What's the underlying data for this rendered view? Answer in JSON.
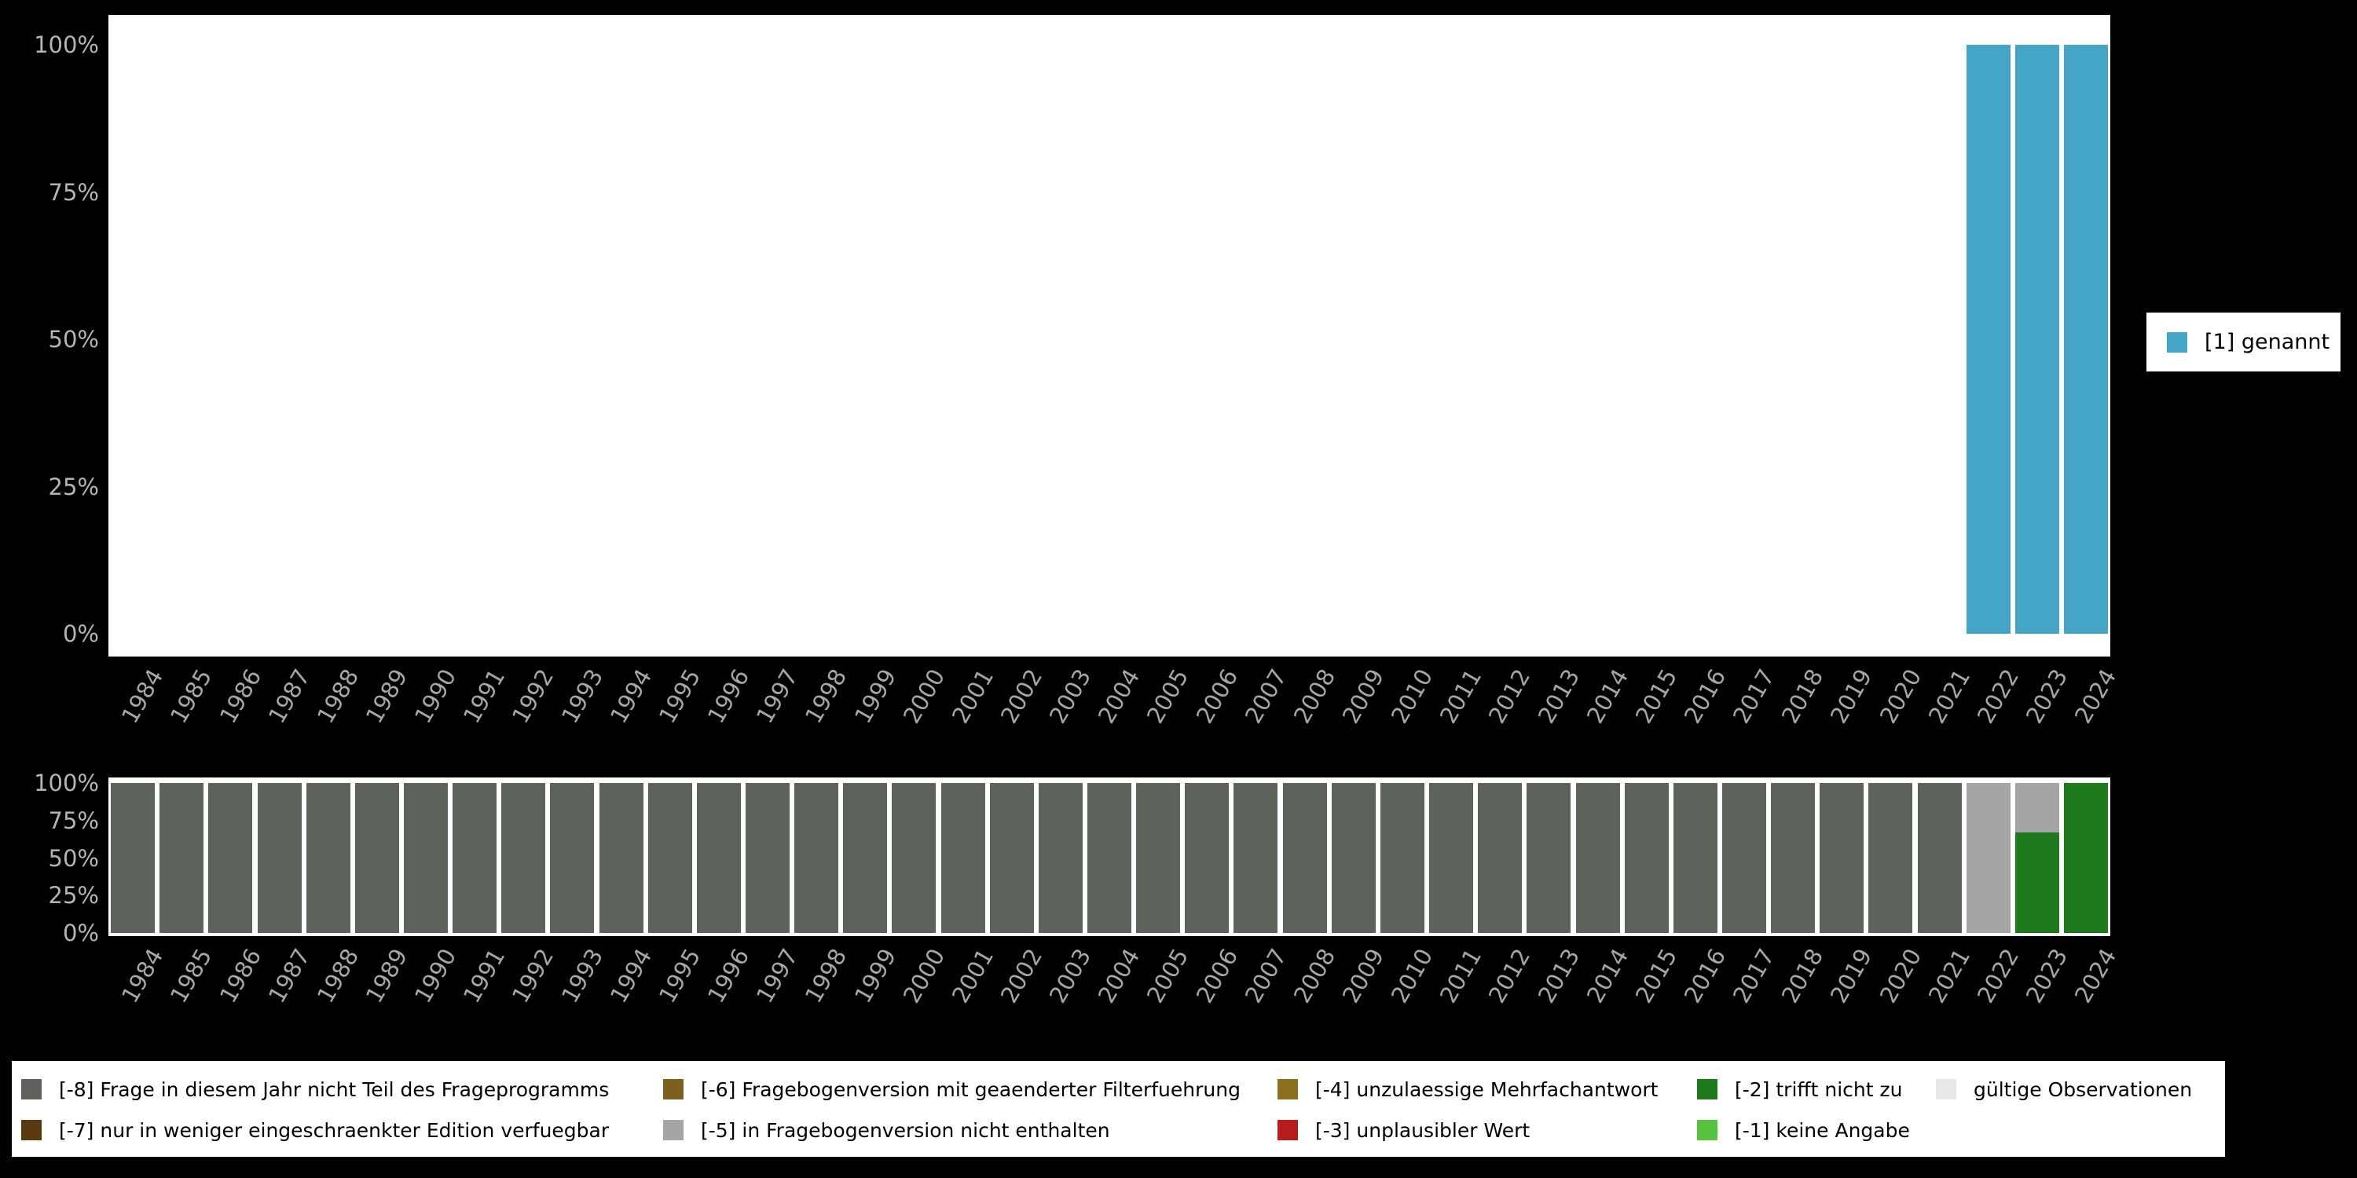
{
  "colors": {
    "background": "#000000",
    "panel": "#ffffff",
    "axis_text": "#b0b0b0",
    "legend_text": "#000000"
  },
  "top_legend": {
    "label": "[1] genannt",
    "color": "#45a5c6"
  },
  "bottom_legend": {
    "columns": [
      [
        {
          "code": "-8",
          "label": "[-8] Frage in diesem Jahr nicht Teil des Frageprogramms",
          "color": "#5d635b"
        },
        {
          "code": "-7",
          "label": "[-7] nur in weniger eingeschraenkter Edition verfuegbar",
          "color": "#5c3a11"
        }
      ],
      [
        {
          "code": "-6",
          "label": "[-6] Fragebogenversion mit geaenderter Filterfuehrung",
          "color": "#7d5f1f"
        },
        {
          "code": "-5",
          "label": "[-5] in Fragebogenversion nicht enthalten",
          "color": "#a5a5a5"
        }
      ],
      [
        {
          "code": "-4",
          "label": "[-4] unzulaessige Mehrfachantwort",
          "color": "#8a701c"
        },
        {
          "code": "-3",
          "label": "[-3] unplausibler Wert",
          "color": "#b51c1c"
        }
      ],
      [
        {
          "code": "-2",
          "label": "[-2] trifft nicht zu",
          "color": "#1e7a1c"
        },
        {
          "code": "-1",
          "label": "[-1] keine Angabe",
          "color": "#57c33f"
        }
      ],
      [
        {
          "code": "valid",
          "label": "gültige Observationen",
          "color": "#e8e8e8"
        }
      ]
    ]
  },
  "chart_data": [
    {
      "type": "bar",
      "stacked": true,
      "unit": "percent",
      "ylim": [
        0,
        100
      ],
      "yticks": [
        "100%",
        "75%",
        "50%",
        "25%",
        "0%"
      ],
      "x_tick_rotation": -60,
      "legend_position": "right",
      "categories": [
        "1984",
        "1985",
        "1986",
        "1987",
        "1988",
        "1989",
        "1990",
        "1991",
        "1992",
        "1993",
        "1994",
        "1995",
        "1996",
        "1997",
        "1998",
        "1999",
        "2000",
        "2001",
        "2002",
        "2003",
        "2004",
        "2005",
        "2006",
        "2007",
        "2008",
        "2009",
        "2010",
        "2011",
        "2012",
        "2013",
        "2014",
        "2015",
        "2016",
        "2017",
        "2018",
        "2019",
        "2020",
        "2021",
        "2022",
        "2023",
        "2024"
      ],
      "series": [
        {
          "name": "[1] genannt",
          "code": "1",
          "color": "#45a5c6",
          "values": [
            0,
            0,
            0,
            0,
            0,
            0,
            0,
            0,
            0,
            0,
            0,
            0,
            0,
            0,
            0,
            0,
            0,
            0,
            0,
            0,
            0,
            0,
            0,
            0,
            0,
            0,
            0,
            0,
            0,
            0,
            0,
            0,
            0,
            0,
            0,
            0,
            0,
            0,
            100,
            100,
            100
          ]
        }
      ]
    },
    {
      "type": "bar",
      "stacked": true,
      "unit": "percent",
      "ylim": [
        0,
        100
      ],
      "yticks": [
        "100%",
        "75%",
        "50%",
        "25%",
        "0%"
      ],
      "x_tick_rotation": -60,
      "legend_position": "bottom",
      "stack_order": "top-down",
      "categories": [
        "1984",
        "1985",
        "1986",
        "1987",
        "1988",
        "1989",
        "1990",
        "1991",
        "1992",
        "1993",
        "1994",
        "1995",
        "1996",
        "1997",
        "1998",
        "1999",
        "2000",
        "2001",
        "2002",
        "2003",
        "2004",
        "2005",
        "2006",
        "2007",
        "2008",
        "2009",
        "2010",
        "2011",
        "2012",
        "2013",
        "2014",
        "2015",
        "2016",
        "2017",
        "2018",
        "2019",
        "2020",
        "2021",
        "2022",
        "2023",
        "2024"
      ],
      "series": [
        {
          "name": "[-8] Frage in diesem Jahr nicht Teil des Frageprogramms",
          "code": "-8",
          "color": "#5d635b",
          "values": [
            100,
            100,
            100,
            100,
            100,
            100,
            100,
            100,
            100,
            100,
            100,
            100,
            100,
            100,
            100,
            100,
            100,
            100,
            100,
            100,
            100,
            100,
            100,
            100,
            100,
            100,
            100,
            100,
            100,
            100,
            100,
            100,
            100,
            100,
            100,
            100,
            100,
            100,
            0,
            0,
            0
          ]
        },
        {
          "name": "[-5] in Fragebogenversion nicht enthalten",
          "code": "-5",
          "color": "#a5a5a5",
          "values": [
            0,
            0,
            0,
            0,
            0,
            0,
            0,
            0,
            0,
            0,
            0,
            0,
            0,
            0,
            0,
            0,
            0,
            0,
            0,
            0,
            0,
            0,
            0,
            0,
            0,
            0,
            0,
            0,
            0,
            0,
            0,
            0,
            0,
            0,
            0,
            0,
            0,
            0,
            100,
            33,
            0
          ]
        },
        {
          "name": "[-2] trifft nicht zu",
          "code": "-2",
          "color": "#1e7a1c",
          "values": [
            0,
            0,
            0,
            0,
            0,
            0,
            0,
            0,
            0,
            0,
            0,
            0,
            0,
            0,
            0,
            0,
            0,
            0,
            0,
            0,
            0,
            0,
            0,
            0,
            0,
            0,
            0,
            0,
            0,
            0,
            0,
            0,
            0,
            0,
            0,
            0,
            0,
            0,
            0,
            67,
            100
          ]
        }
      ]
    }
  ]
}
